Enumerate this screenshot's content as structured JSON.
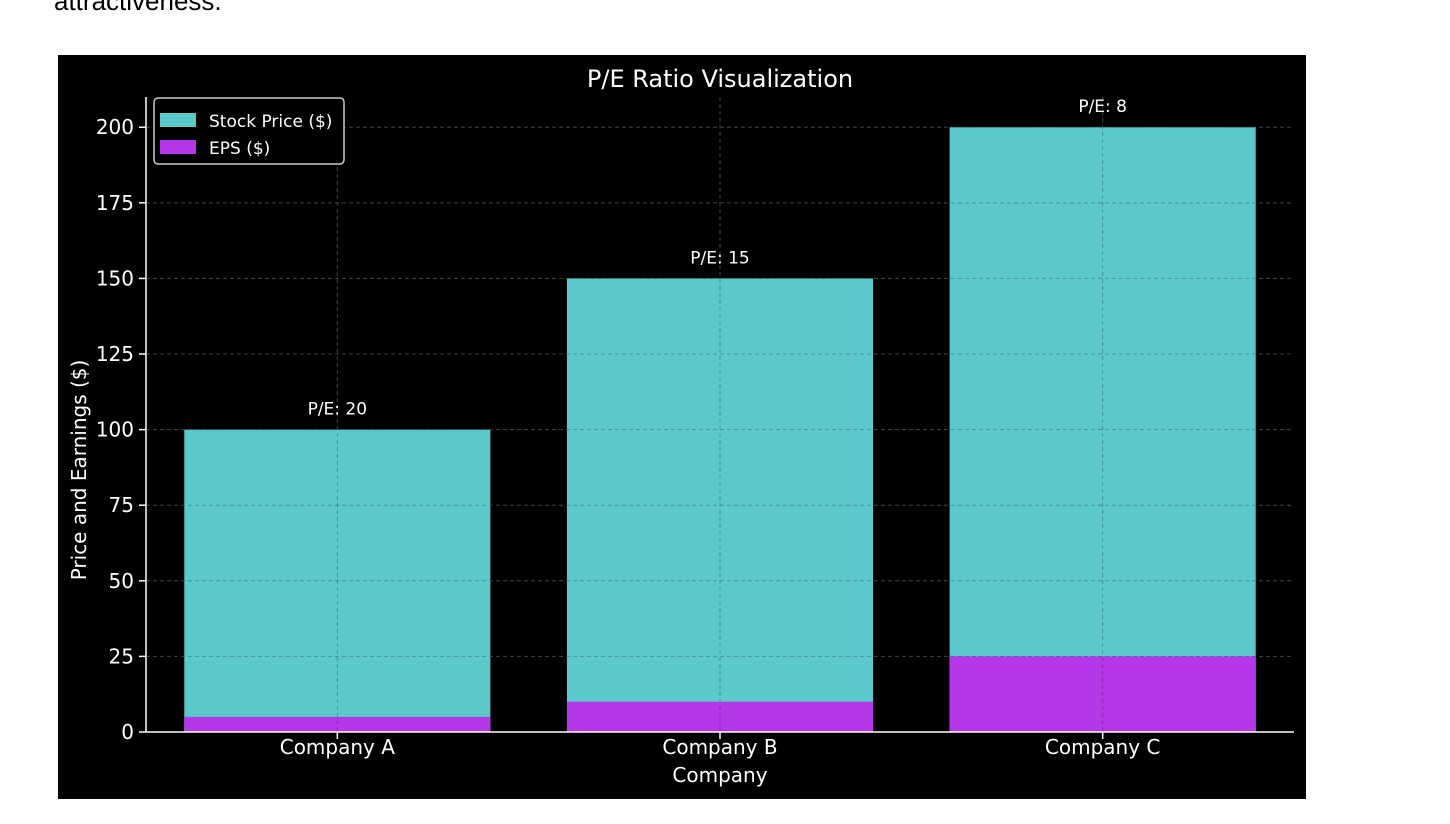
{
  "page": {
    "intro_text": "attractiveness."
  },
  "chart_data": {
    "type": "bar",
    "stacked": false,
    "title": "P/E Ratio Visualization",
    "xlabel": "Company",
    "ylabel": "Price and Earnings ($)",
    "categories": [
      "Company A",
      "Company B",
      "Company C"
    ],
    "series": [
      {
        "name": "Stock Price ($)",
        "values": [
          100,
          150,
          200
        ],
        "color": "#5bc8cb"
      },
      {
        "name": "EPS ($)",
        "values": [
          5,
          10,
          25
        ],
        "color": "#b538e8"
      }
    ],
    "annotations": [
      "P/E: 20",
      "P/E: 15",
      "P/E: 8"
    ],
    "yticks": [
      0,
      25,
      50,
      75,
      100,
      125,
      150,
      175,
      200
    ],
    "ylim": [
      0,
      210
    ],
    "grid": true,
    "legend": "top-left",
    "colors": {
      "background": "#000000",
      "text": "#ffffff",
      "grid": "#555555"
    }
  }
}
